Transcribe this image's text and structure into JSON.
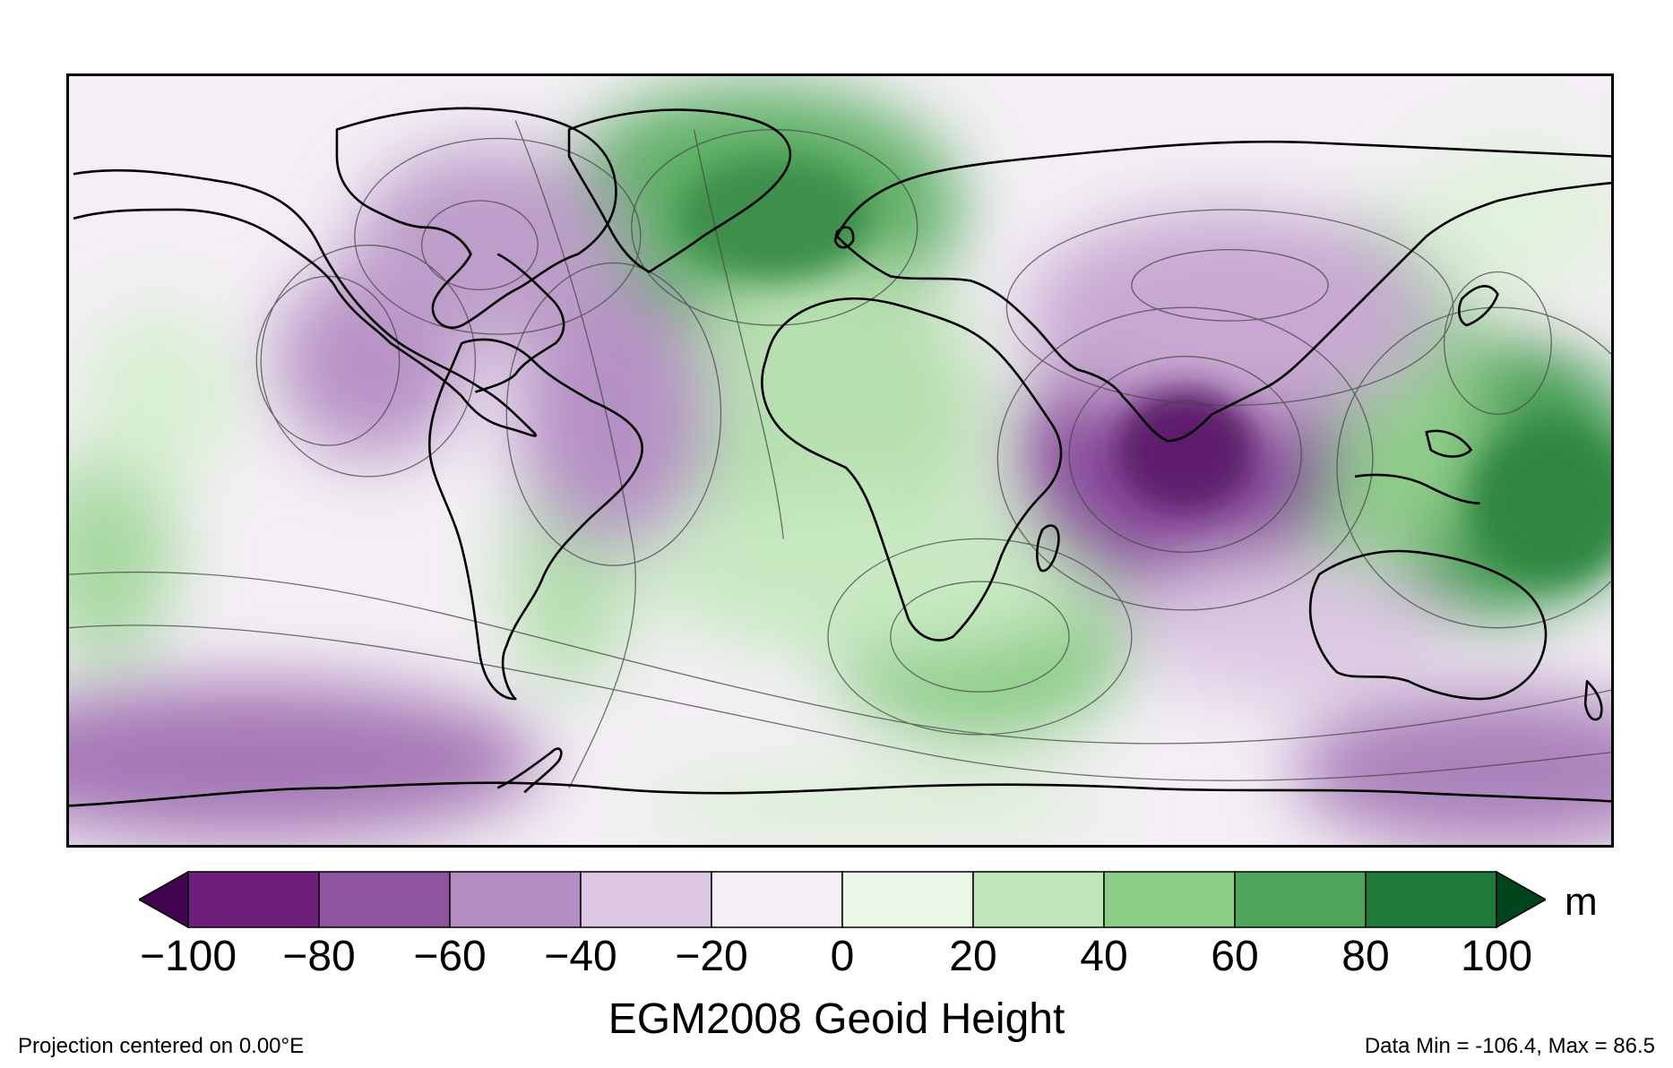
{
  "map": {
    "title": "EGM2008 Geoid Height",
    "projection_note": "Projection centered on 0.00°E",
    "data_range_note": "Data Min = -106.4, Max = 86.5",
    "colorbar": {
      "units": "m",
      "min": -100,
      "max": 100,
      "tick_labels": [
        "−100",
        "−80",
        "−60",
        "−40",
        "−20",
        "0",
        "20",
        "40",
        "60",
        "80",
        "100"
      ],
      "colors": [
        "#43044f",
        "#6e1f7c",
        "#8f55a0",
        "#b58cc3",
        "#dcc6e2",
        "#f4eff4",
        "#eaf6e6",
        "#bfe6b8",
        "#8cce88",
        "#4fa65a",
        "#1e7a39",
        "#00441b"
      ],
      "extend": "both"
    },
    "colors": {
      "purple_low": "#6a1e78",
      "green_high": "#1f7f3b",
      "neutral": "#f7f4f7"
    }
  }
}
